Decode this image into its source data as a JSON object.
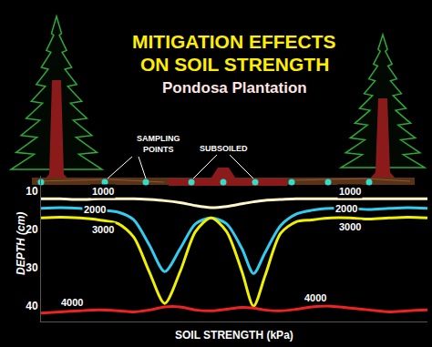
{
  "chart_data": {
    "type": "line",
    "title": "MITIGATION EFFECTS\nON SOIL STRENGTH",
    "subtitle": "Pondosa Plantation",
    "x_label": "SOIL STRENGTH (kPa)",
    "y_label": "DEPTH (cm)",
    "annotations": [
      "SAMPLING\nPOINTS",
      "SUBSOILED"
    ],
    "xlim": [
      0,
      100
    ],
    "ylim": [
      44,
      6
    ],
    "yticks": [
      10,
      20,
      30,
      40
    ],
    "tick_labels": "y",
    "grid": false,
    "x": [
      0,
      5,
      10,
      15,
      20,
      24,
      28,
      32,
      36,
      40,
      44,
      48,
      52,
      55,
      58,
      62,
      66,
      70,
      75,
      80,
      85,
      90,
      95,
      100
    ],
    "series": [
      {
        "name": "1000",
        "color": "#fff7c8",
        "values": [
          12,
          12,
          12.2,
          12,
          12,
          12,
          12.2,
          12.5,
          13,
          13.8,
          14.3,
          14,
          13.3,
          12.8,
          12.4,
          12.2,
          12,
          12,
          12,
          12,
          12,
          12,
          12,
          12
        ]
      },
      {
        "name": "2000",
        "color": "#33ccee",
        "values": [
          14.5,
          14.3,
          14.5,
          15,
          15.5,
          17.5,
          24,
          31,
          25,
          18.5,
          17,
          18.5,
          25,
          31.5,
          26,
          19,
          16,
          15,
          14.5,
          14.5,
          14.8,
          14.5,
          14.3,
          14.5
        ]
      },
      {
        "name": "3000",
        "color": "#f0f000",
        "values": [
          17,
          16.8,
          17,
          17.5,
          18.5,
          22,
          31,
          39.3,
          31,
          20.5,
          17,
          20.5,
          31,
          40,
          32,
          21,
          18,
          17.5,
          17,
          17,
          17.3,
          17,
          16.8,
          17
        ]
      },
      {
        "name": "4000",
        "color": "#ee2222",
        "values": [
          41.8,
          41.5,
          41.2,
          41,
          41.2,
          41.5,
          41,
          40.2,
          40.2,
          41,
          41.2,
          40.8,
          40.3,
          40.5,
          41,
          41.2,
          40.8,
          40.2,
          40,
          40.5,
          41,
          41.5,
          41.2,
          41
        ]
      }
    ]
  }
}
